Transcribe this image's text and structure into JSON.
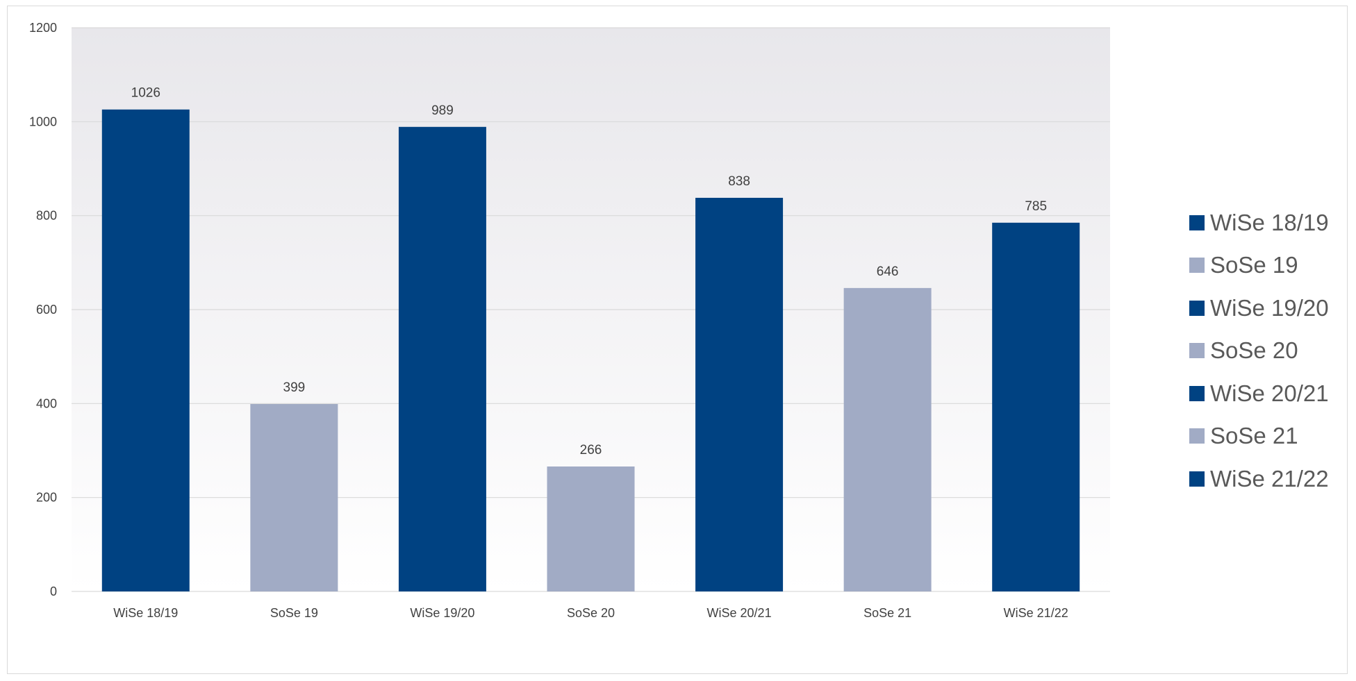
{
  "chart_data": {
    "type": "bar",
    "title": "",
    "xlabel": "",
    "ylabel": "",
    "categories": [
      "WiSe 18/19",
      "SoSe 19",
      "WiSe 19/20",
      "SoSe 20",
      "WiSe 20/21",
      "SoSe 21",
      "WiSe 21/22"
    ],
    "values": [
      1026,
      399,
      989,
      266,
      838,
      646,
      785
    ],
    "data_labels": [
      "1026",
      "399",
      "989",
      "266",
      "838",
      "646",
      "785"
    ],
    "ylim": [
      0,
      1200
    ],
    "y_ticks": [
      0,
      200,
      400,
      600,
      800,
      1000,
      1200
    ],
    "y_tick_labels": [
      "0",
      "200",
      "400",
      "600",
      "800",
      "1000",
      "1200"
    ],
    "grid": true,
    "legend_position": "right",
    "colors": {
      "wise": "#004282",
      "sose": "#a1abc5",
      "plot_bg_top": "#e8e7eb",
      "plot_bg_bottom": "#ffffff",
      "gridline": "#d9d9d9"
    },
    "bar_colors": [
      "#004282",
      "#a1abc5",
      "#004282",
      "#a1abc5",
      "#004282",
      "#a1abc5",
      "#004282"
    ]
  },
  "legend": {
    "items": [
      {
        "label": "WiSe 18/19",
        "color": "#004282"
      },
      {
        "label": "SoSe 19",
        "color": "#a1abc5"
      },
      {
        "label": "WiSe 19/20",
        "color": "#004282"
      },
      {
        "label": "SoSe 20",
        "color": "#a1abc5"
      },
      {
        "label": "WiSe 20/21",
        "color": "#004282"
      },
      {
        "label": "SoSe 21",
        "color": "#a1abc5"
      },
      {
        "label": "WiSe 21/22",
        "color": "#004282"
      }
    ]
  }
}
